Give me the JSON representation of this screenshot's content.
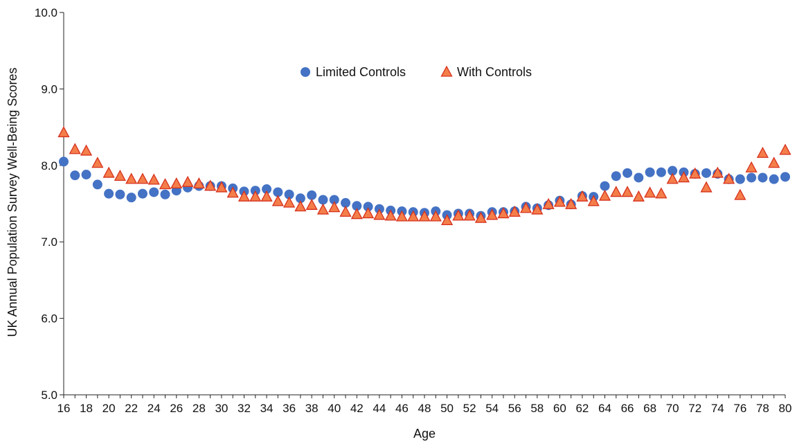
{
  "chart_data": {
    "type": "scatter",
    "xlabel": "Age",
    "ylabel": "UK Annual Population Survey Well-Being Scores",
    "xlim": [
      16,
      80
    ],
    "ylim": [
      5.0,
      10.0
    ],
    "x_ticks": [
      "16",
      "18",
      "20",
      "22",
      "24",
      "26",
      "28",
      "30",
      "32",
      "34",
      "36",
      "38",
      "40",
      "42",
      "44",
      "46",
      "48",
      "50",
      "52",
      "54",
      "56",
      "58",
      "60",
      "62",
      "64",
      "66",
      "68",
      "70",
      "72",
      "74",
      "76",
      "78",
      "80"
    ],
    "y_ticks": [
      "5.0",
      "6.0",
      "7.0",
      "8.0",
      "9.0",
      "10.0"
    ],
    "legend_position": "top-center",
    "x": [
      16,
      17,
      18,
      19,
      20,
      21,
      22,
      23,
      24,
      25,
      26,
      27,
      28,
      29,
      30,
      31,
      32,
      33,
      34,
      35,
      36,
      37,
      38,
      39,
      40,
      41,
      42,
      43,
      44,
      45,
      46,
      47,
      48,
      49,
      50,
      51,
      52,
      53,
      54,
      55,
      56,
      57,
      58,
      59,
      60,
      61,
      62,
      63,
      64,
      65,
      66,
      67,
      68,
      69,
      70,
      71,
      72,
      73,
      74,
      75,
      76,
      77,
      78,
      79,
      80
    ],
    "series": [
      {
        "name": "Limited Controls",
        "marker": "circle",
        "color": "#4472c4",
        "values": [
          8.05,
          7.87,
          7.88,
          7.75,
          7.63,
          7.62,
          7.58,
          7.63,
          7.65,
          7.62,
          7.67,
          7.71,
          7.73,
          7.73,
          7.73,
          7.7,
          7.66,
          7.67,
          7.69,
          7.65,
          7.62,
          7.57,
          7.61,
          7.55,
          7.55,
          7.51,
          7.47,
          7.46,
          7.43,
          7.41,
          7.4,
          7.39,
          7.38,
          7.4,
          7.35,
          7.37,
          7.37,
          7.34,
          7.39,
          7.39,
          7.4,
          7.46,
          7.44,
          7.48,
          7.54,
          7.49,
          7.6,
          7.59,
          7.73,
          7.86,
          7.9,
          7.84,
          7.91,
          7.91,
          7.93,
          7.91,
          7.89,
          7.9,
          7.89,
          7.82,
          7.82,
          7.84,
          7.84,
          7.82,
          7.85
        ]
      },
      {
        "name": "With Controls",
        "marker": "triangle",
        "color": "#e8432b",
        "values": [
          8.42,
          8.2,
          8.18,
          8.02,
          7.89,
          7.85,
          7.81,
          7.81,
          7.8,
          7.74,
          7.75,
          7.77,
          7.75,
          7.72,
          7.7,
          7.63,
          7.58,
          7.58,
          7.58,
          7.52,
          7.5,
          7.45,
          7.47,
          7.41,
          7.44,
          7.38,
          7.35,
          7.36,
          7.34,
          7.33,
          7.32,
          7.32,
          7.32,
          7.32,
          7.27,
          7.33,
          7.33,
          7.3,
          7.34,
          7.36,
          7.38,
          7.43,
          7.41,
          7.48,
          7.51,
          7.48,
          7.58,
          7.52,
          7.59,
          7.64,
          7.64,
          7.58,
          7.63,
          7.62,
          7.81,
          7.83,
          7.88,
          7.7,
          7.89,
          7.81,
          7.6,
          7.96,
          8.15,
          8.02,
          8.19
        ]
      }
    ]
  }
}
